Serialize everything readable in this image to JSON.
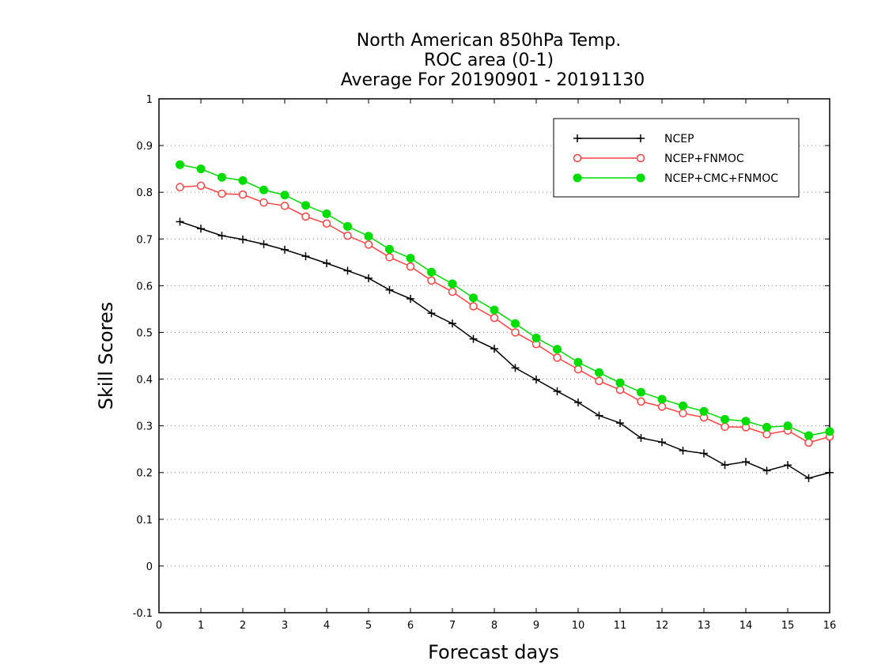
{
  "chart_data": {
    "type": "line",
    "title_lines": [
      "North American 850hPa Temp.",
      "ROC area (0-1)",
      "Average For 20190901 - 20191130"
    ],
    "xlabel": "Forecast days",
    "ylabel": "Skill Scores",
    "xlim": [
      0,
      16
    ],
    "ylim": [
      -0.1,
      1
    ],
    "xticks": [
      0,
      1,
      2,
      3,
      4,
      5,
      6,
      7,
      8,
      9,
      10,
      11,
      12,
      13,
      14,
      15,
      16
    ],
    "yticks": [
      -0.1,
      0,
      0.1,
      0.2,
      0.3,
      0.4,
      0.5,
      0.6,
      0.7,
      0.8,
      0.9,
      1
    ],
    "ytick_labels": [
      "-0.1",
      "0",
      "0.1",
      "0.2",
      "0.3",
      "0.4",
      "0.5",
      "0.6",
      "0.7",
      "0.8",
      "0.9",
      "1"
    ],
    "grid": "horizontal dotted",
    "legend_position": "top-right",
    "x": [
      0.5,
      1,
      1.5,
      2,
      2.5,
      3,
      3.5,
      4,
      4.5,
      5,
      5.5,
      6,
      6.5,
      7,
      7.5,
      8,
      8.5,
      9,
      9.5,
      10,
      10.5,
      11,
      11.5,
      12,
      12.5,
      13,
      13.5,
      14,
      14.5,
      15,
      15.5,
      16
    ],
    "series": [
      {
        "name": "NCEP",
        "color": "#000000",
        "marker": "plus",
        "values": [
          0.737,
          0.722,
          0.707,
          0.699,
          0.689,
          0.677,
          0.663,
          0.648,
          0.632,
          0.616,
          0.591,
          0.572,
          0.541,
          0.519,
          0.486,
          0.465,
          0.424,
          0.399,
          0.374,
          0.35,
          0.322,
          0.306,
          0.274,
          0.265,
          0.247,
          0.241,
          0.216,
          0.223,
          0.204,
          0.216,
          0.188,
          0.2
        ]
      },
      {
        "name": "NCEP+FNMOC",
        "color": "#ff4040",
        "marker": "open-circle",
        "values": [
          0.811,
          0.814,
          0.797,
          0.795,
          0.778,
          0.771,
          0.748,
          0.733,
          0.707,
          0.688,
          0.661,
          0.641,
          0.611,
          0.587,
          0.556,
          0.531,
          0.5,
          0.475,
          0.446,
          0.421,
          0.396,
          0.377,
          0.352,
          0.341,
          0.327,
          0.318,
          0.298,
          0.297,
          0.282,
          0.29,
          0.264,
          0.277
        ]
      },
      {
        "name": "NCEP+CMC+FNMOC",
        "color": "#00dd00",
        "marker": "filled-circle",
        "values": [
          0.859,
          0.85,
          0.832,
          0.825,
          0.805,
          0.794,
          0.772,
          0.754,
          0.727,
          0.706,
          0.678,
          0.659,
          0.629,
          0.604,
          0.574,
          0.548,
          0.519,
          0.488,
          0.464,
          0.436,
          0.414,
          0.392,
          0.372,
          0.357,
          0.343,
          0.331,
          0.314,
          0.31,
          0.297,
          0.3,
          0.279,
          0.288
        ]
      }
    ]
  }
}
